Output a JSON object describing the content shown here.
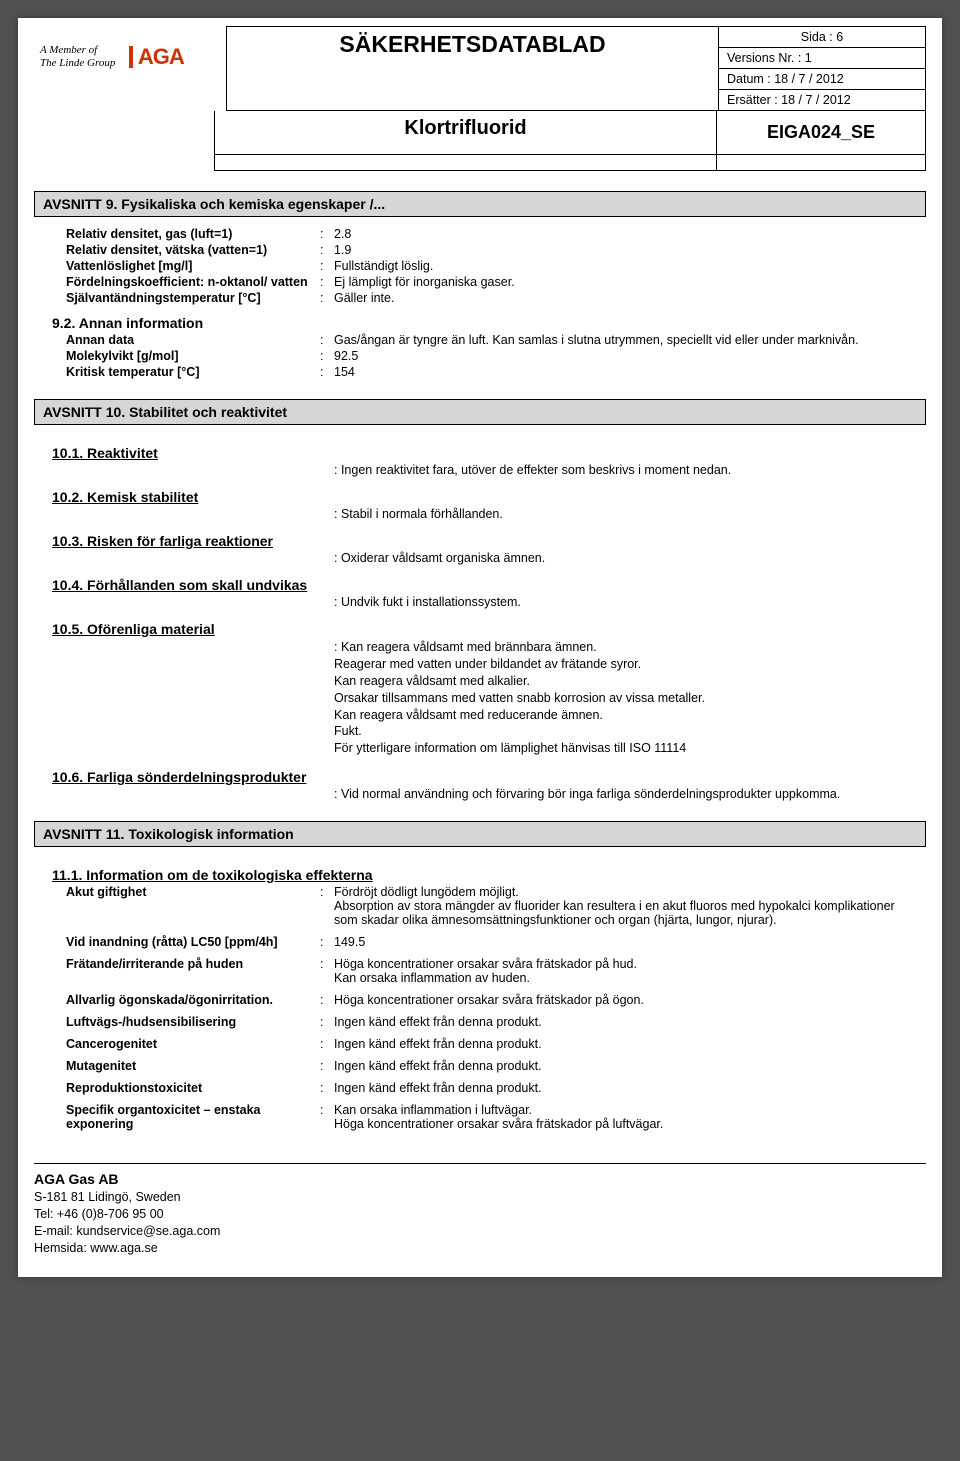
{
  "header": {
    "logo_tagline1": "A Member of",
    "logo_tagline2": "The Linde Group",
    "logo_mark": "AGA",
    "title": "SÄKERHETSDATABLAD",
    "page_line": "Sida : 6",
    "version_line": "Versions Nr. : 1",
    "date_line": "Datum : 18 / 7 / 2012",
    "replaces_line": "Ersätter : 18 / 7 / 2012",
    "substance": "Klortrifluorid",
    "doc_code": "EIGA024_SE"
  },
  "s9": {
    "bar": "AVSNITT 9.  Fysikaliska och kemiska egenskaper /...",
    "rows": [
      {
        "k": "Relativ densitet, gas (luft=1)",
        "v": "2.8"
      },
      {
        "k": "Relativ densitet, vätska (vatten=1)",
        "v": "1.9"
      },
      {
        "k": "Vattenlöslighet [mg/l]",
        "v": "Fullständigt löslig."
      },
      {
        "k": "Fördelningskoefficient: n-oktanol/ vatten",
        "v": "Ej lämpligt för inorganiska gaser."
      },
      {
        "k": "Självantändningstemperatur [°C]",
        "v": "Gäller inte."
      }
    ],
    "sub92": "9.2.  Annan information",
    "rows2": [
      {
        "k": "Annan data",
        "v": "Gas/ångan är tyngre än luft. Kan samlas i slutna utrymmen, speciellt vid eller under marknivån."
      },
      {
        "k": "Molekylvikt [g/mol]",
        "v": "92.5"
      },
      {
        "k": "Kritisk temperatur [°C]",
        "v": "154"
      }
    ]
  },
  "s10": {
    "bar": "AVSNITT 10.  Stabilitet och reaktivitet",
    "h1": "10.1.  Reaktivitet",
    "v1": "Ingen reaktivitet fara, utöver de effekter som beskrivs i moment nedan.",
    "h2": "10.2.  Kemisk stabilitet",
    "v2": "Stabil i normala förhållanden.",
    "h3": "10.3.  Risken för farliga reaktioner",
    "v3": "Oxiderar våldsamt organiska ämnen.",
    "h4": "10.4.  Förhållanden som skall undvikas",
    "v4": "Undvik fukt i installationssystem.",
    "h5": "10.5.  Oförenliga material",
    "v5a": ": Kan reagera våldsamt med brännbara ämnen.",
    "v5b": "Reagerar med vatten under bildandet av frätande syror.",
    "v5c": "Kan reagera våldsamt med alkalier.",
    "v5d": "Orsakar tillsammans med vatten snabb korrosion av vissa metaller.",
    "v5e": "Kan reagera våldsamt med reducerande ämnen.",
    "v5f": "Fukt.",
    "v5g": "För ytterligare information om lämplighet hänvisas till ISO 11114",
    "h6": "10.6.  Farliga sönderdelningsprodukter",
    "v6": "Vid normal användning och förvaring bör inga farliga sönderdelningsprodukter uppkomma."
  },
  "s11": {
    "bar": "AVSNITT 11.  Toxikologisk information",
    "h1": "11.1.  Information om de toxikologiska effekterna",
    "rows": [
      {
        "k": "Akut giftighet",
        "v": "Fördröjt dödligt lungödem möjligt.\nAbsorption av stora mängder av fluorider kan resultera i en akut fluoros med hypokalci komplikationer som skadar olika ämnesomsättningsfunktioner och organ (hjärta, lungor, njurar)."
      },
      {
        "k": "Vid inandning (råtta) LC50  [ppm/4h]",
        "v": "149.5"
      },
      {
        "k": "Frätande/irriterande på huden",
        "v": "Höga koncentrationer orsakar svåra frätskador på hud.\nKan orsaka inflammation av huden."
      },
      {
        "k": "Allvarlig ögonskada/ögonirritation.",
        "v": "Höga koncentrationer orsakar svåra frätskador på ögon."
      },
      {
        "k": "Luftvägs-/hudsensibilisering",
        "v": "Ingen känd effekt från denna produkt."
      },
      {
        "k": "Cancerogenitet",
        "v": "Ingen känd effekt från denna produkt."
      },
      {
        "k": "Mutagenitet",
        "v": "Ingen känd effekt från denna produkt."
      },
      {
        "k": "Reproduktionstoxicitet",
        "v": "Ingen känd effekt från denna produkt."
      },
      {
        "k": "Specifik organtoxicitet – enstaka exponering",
        "v": "Kan orsaka inflammation i luftvägar.\nHöga koncentrationer orsakar svåra frätskador på luftvägar."
      }
    ]
  },
  "footer": {
    "company": "AGA Gas AB",
    "addr": "S-181 81 Lidingö, Sweden",
    "tel": "Tel: +46 (0)8-706 95 00",
    "email": "E-mail: kundservice@se.aga.com",
    "web": "Hemsida: www.aga.se"
  }
}
